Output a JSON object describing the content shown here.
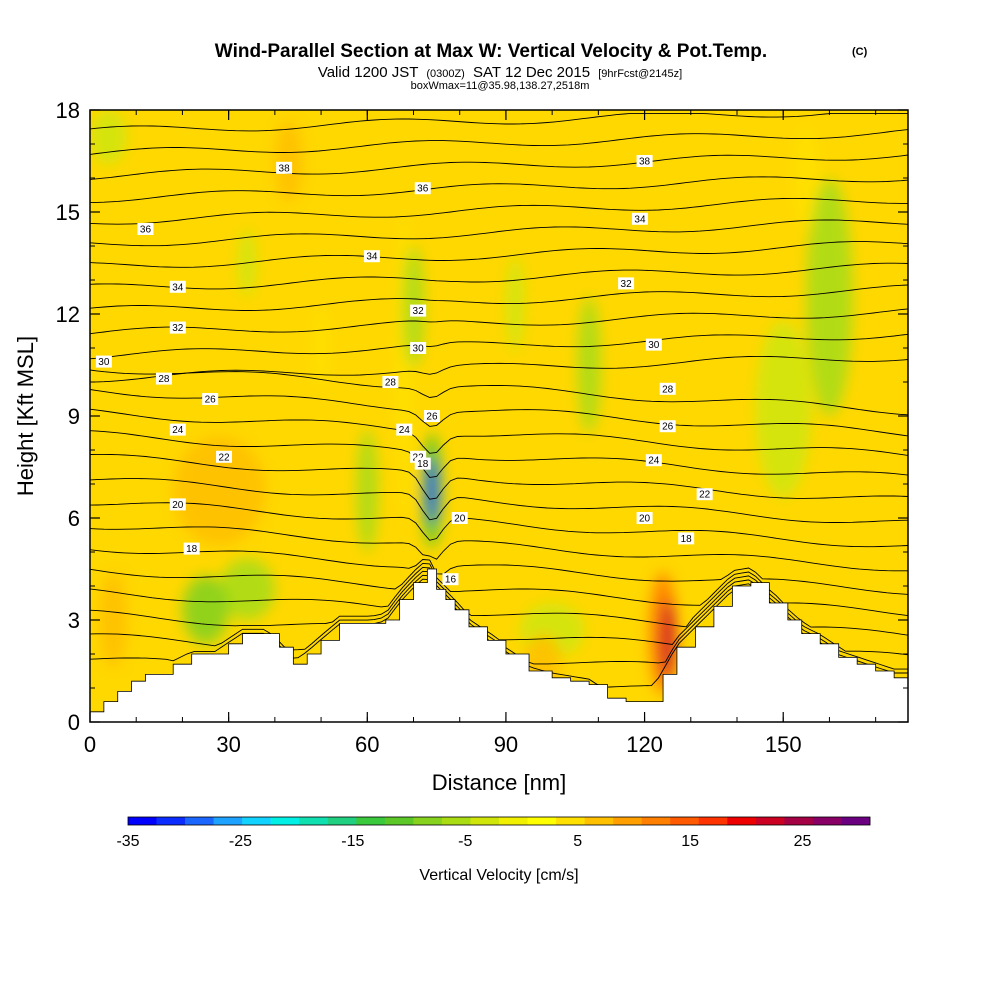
{
  "title": "Wind-Parallel Section at Max W: Vertical Velocity & Pot.Temp.",
  "title_mark": "(C)",
  "valid_prefix": "Valid 1200 JST",
  "valid_utc": "(0300Z)",
  "valid_date": "SAT 12 Dec 2015",
  "forecast": "[9hrFcst@2145z]",
  "box_info": "boxWmax=11@35.98,138.27,2518m",
  "chart_data": {
    "type": "heatmap",
    "xlabel": "Distance [nm]",
    "ylabel": "Height [Kft MSL]",
    "xlim": [
      0,
      177
    ],
    "ylim": [
      0,
      18
    ],
    "x_ticks": [
      {
        "value": 0,
        "label": "0"
      },
      {
        "value": 30,
        "label": "30"
      },
      {
        "value": 60,
        "label": "60"
      },
      {
        "value": 90,
        "label": "90"
      },
      {
        "value": 120,
        "label": "120"
      },
      {
        "value": 150,
        "label": "150"
      }
    ],
    "y_ticks": [
      {
        "value": 0,
        "label": "0"
      },
      {
        "value": 3,
        "label": "3"
      },
      {
        "value": 6,
        "label": "6"
      },
      {
        "value": 9,
        "label": "9"
      },
      {
        "value": 12,
        "label": "12"
      },
      {
        "value": 15,
        "label": "15"
      },
      {
        "value": 18,
        "label": "18"
      }
    ],
    "terrain": [
      [
        0,
        0.3
      ],
      [
        3,
        0.6
      ],
      [
        6,
        0.9
      ],
      [
        9,
        1.2
      ],
      [
        12,
        1.4
      ],
      [
        18,
        1.7
      ],
      [
        22,
        2.0
      ],
      [
        27,
        2.0
      ],
      [
        30,
        2.3
      ],
      [
        33,
        2.6
      ],
      [
        38,
        2.6
      ],
      [
        41,
        2.2
      ],
      [
        44,
        1.7
      ],
      [
        47,
        2.0
      ],
      [
        50,
        2.4
      ],
      [
        54,
        2.9
      ],
      [
        58,
        2.9
      ],
      [
        61,
        2.9
      ],
      [
        64,
        3.0
      ],
      [
        67,
        3.6
      ],
      [
        70,
        4.1
      ],
      [
        73,
        4.5
      ],
      [
        75,
        3.9
      ],
      [
        77,
        3.6
      ],
      [
        79,
        3.3
      ],
      [
        82,
        2.8
      ],
      [
        86,
        2.4
      ],
      [
        90,
        2.0
      ],
      [
        95,
        1.5
      ],
      [
        100,
        1.3
      ],
      [
        104,
        1.2
      ],
      [
        108,
        1.1
      ],
      [
        112,
        0.7
      ],
      [
        116,
        0.6
      ],
      [
        121,
        0.6
      ],
      [
        124,
        1.4
      ],
      [
        127,
        2.2
      ],
      [
        131,
        2.8
      ],
      [
        135,
        3.4
      ],
      [
        139,
        4.0
      ],
      [
        143,
        4.1
      ],
      [
        147,
        3.5
      ],
      [
        151,
        3.0
      ],
      [
        154,
        2.6
      ],
      [
        158,
        2.3
      ],
      [
        162,
        1.9
      ],
      [
        166,
        1.7
      ],
      [
        170,
        1.5
      ],
      [
        174,
        1.3
      ],
      [
        177,
        1.3
      ]
    ],
    "w_features": [
      {
        "x": 74,
        "y": 6.8,
        "rx": 1.2,
        "ry": 1.0,
        "w": -30
      },
      {
        "x": 74,
        "y": 6.8,
        "rx": 2.2,
        "ry": 1.7,
        "w": -12
      },
      {
        "x": 60,
        "y": 6.8,
        "rx": 2.3,
        "ry": 1.8,
        "w": -7
      },
      {
        "x": 70,
        "y": 12.2,
        "rx": 2.3,
        "ry": 1.8,
        "w": -7
      },
      {
        "x": 108,
        "y": 10.5,
        "rx": 2.5,
        "ry": 2.0,
        "w": -5
      },
      {
        "x": 160,
        "y": 12.5,
        "rx": 5.0,
        "ry": 3.5,
        "w": -6
      },
      {
        "x": 150,
        "y": 9.2,
        "rx": 6.0,
        "ry": 2.6,
        "w": -4
      },
      {
        "x": 25,
        "y": 3.3,
        "rx": 5.0,
        "ry": 1.0,
        "w": -8
      },
      {
        "x": 34,
        "y": 3.9,
        "rx": 6.0,
        "ry": 0.9,
        "w": -6
      },
      {
        "x": 4,
        "y": 17.2,
        "rx": 4.0,
        "ry": 0.8,
        "w": -4
      },
      {
        "x": 34,
        "y": 13.5,
        "rx": 2.0,
        "ry": 1.0,
        "w": -3
      },
      {
        "x": 92,
        "y": 12.3,
        "rx": 2.0,
        "ry": 1.4,
        "w": -3
      },
      {
        "x": 100,
        "y": 2.7,
        "rx": 7.0,
        "ry": 0.8,
        "w": -4
      },
      {
        "x": 125,
        "y": 2.4,
        "rx": 1.6,
        "ry": 1.2,
        "w": 22
      },
      {
        "x": 124,
        "y": 2.6,
        "rx": 3.0,
        "ry": 1.8,
        "w": 11
      },
      {
        "x": 28,
        "y": 6.8,
        "rx": 10.0,
        "ry": 1.6,
        "w": 7
      },
      {
        "x": 5,
        "y": 3.0,
        "rx": 3.0,
        "ry": 1.4,
        "w": 7
      },
      {
        "x": 98,
        "y": 1.8,
        "rx": 4.0,
        "ry": 0.8,
        "w": 8
      },
      {
        "x": 68,
        "y": 10.5,
        "rx": 2.0,
        "ry": 4.5,
        "w": 5
      },
      {
        "x": 43,
        "y": 16.5,
        "rx": 3.0,
        "ry": 1.2,
        "w": 6
      },
      {
        "x": 155,
        "y": 16.0,
        "rx": 3.0,
        "ry": 1.5,
        "w": 5
      },
      {
        "x": 50,
        "y": 11.0,
        "rx": 2.0,
        "ry": 1.2,
        "w": 5
      }
    ],
    "colorbar": {
      "label": "Vertical Velocity [cm/s]",
      "min": -35,
      "max": 31,
      "ticks": [
        -35,
        -25,
        -15,
        -5,
        5,
        15,
        25
      ],
      "tick_labels": [
        "-35",
        "-25",
        "-15",
        "-5",
        "5",
        "15",
        "25"
      ],
      "colors": [
        "#0000ff",
        "#0a2cff",
        "#1a66ff",
        "#1da2ff",
        "#12d2ff",
        "#00f0e6",
        "#10e0b0",
        "#20d080",
        "#3ac83c",
        "#5cc828",
        "#86d21e",
        "#aadc14",
        "#d0e60a",
        "#f0f000",
        "#ffff00",
        "#ffe000",
        "#ffc000",
        "#ff9f00",
        "#ff7f00",
        "#ff5a00",
        "#ff3300",
        "#ee0000",
        "#cc0022",
        "#a40044",
        "#880066",
        "#6a0080"
      ]
    },
    "contour_labels": [
      {
        "x": 42,
        "y": 16.3,
        "text": "38"
      },
      {
        "x": 120,
        "y": 16.5,
        "text": "38"
      },
      {
        "x": 72,
        "y": 15.7,
        "text": "36"
      },
      {
        "x": 12,
        "y": 14.5,
        "text": "36"
      },
      {
        "x": 119,
        "y": 14.8,
        "text": "34"
      },
      {
        "x": 61,
        "y": 13.7,
        "text": "34"
      },
      {
        "x": 19,
        "y": 12.8,
        "text": "34"
      },
      {
        "x": 116,
        "y": 12.9,
        "text": "32"
      },
      {
        "x": 71,
        "y": 12.1,
        "text": "32"
      },
      {
        "x": 19,
        "y": 11.6,
        "text": "32"
      },
      {
        "x": 3,
        "y": 10.6,
        "text": "30"
      },
      {
        "x": 71,
        "y": 11.0,
        "text": "30"
      },
      {
        "x": 122,
        "y": 11.1,
        "text": "30"
      },
      {
        "x": 16,
        "y": 10.1,
        "text": "28"
      },
      {
        "x": 65,
        "y": 10.0,
        "text": "28"
      },
      {
        "x": 125,
        "y": 9.8,
        "text": "28"
      },
      {
        "x": 26,
        "y": 9.5,
        "text": "26"
      },
      {
        "x": 74,
        "y": 9.0,
        "text": "26"
      },
      {
        "x": 125,
        "y": 8.7,
        "text": "26"
      },
      {
        "x": 19,
        "y": 8.6,
        "text": "24"
      },
      {
        "x": 68,
        "y": 8.6,
        "text": "24"
      },
      {
        "x": 122,
        "y": 7.7,
        "text": "24"
      },
      {
        "x": 29,
        "y": 7.8,
        "text": "22"
      },
      {
        "x": 71,
        "y": 7.8,
        "text": "22"
      },
      {
        "x": 133,
        "y": 6.7,
        "text": "22"
      },
      {
        "x": 72,
        "y": 7.6,
        "text": "18"
      },
      {
        "x": 19,
        "y": 6.4,
        "text": "20"
      },
      {
        "x": 80,
        "y": 6.0,
        "text": "20"
      },
      {
        "x": 120,
        "y": 6.0,
        "text": "20"
      },
      {
        "x": 22,
        "y": 5.1,
        "text": "18"
      },
      {
        "x": 129,
        "y": 5.4,
        "text": "18"
      },
      {
        "x": 78,
        "y": 4.2,
        "text": "16"
      }
    ]
  }
}
